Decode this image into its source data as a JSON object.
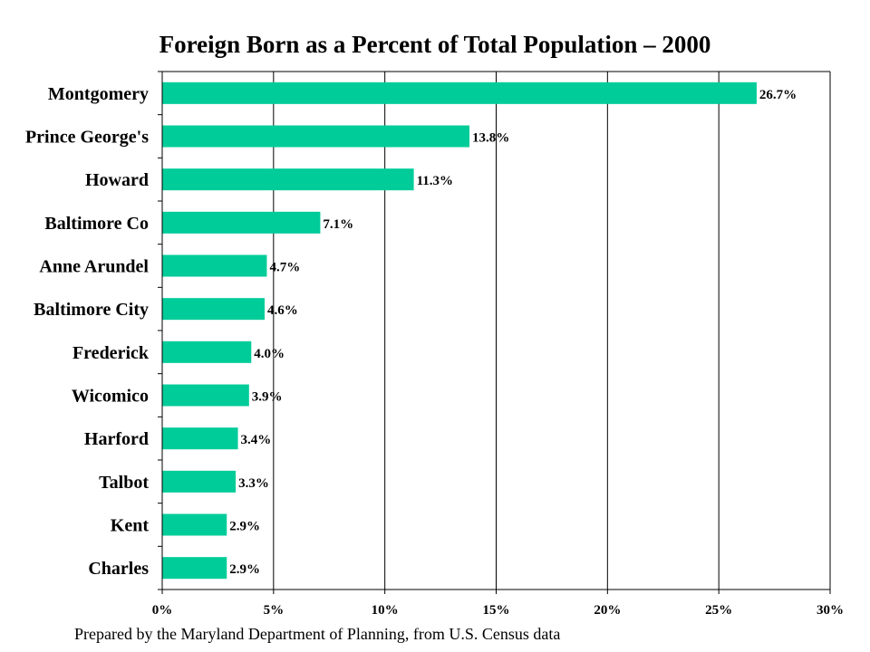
{
  "chart_data": {
    "type": "bar",
    "orientation": "horizontal",
    "title": "Foreign Born as a Percent of Total Population – 2000",
    "categories": [
      "Montgomery",
      "Prince George's",
      "Howard",
      "Baltimore Co",
      "Anne Arundel",
      "Baltimore City",
      "Frederick",
      "Wicomico",
      "Harford",
      "Talbot",
      "Kent",
      "Charles"
    ],
    "values": [
      26.7,
      13.8,
      11.3,
      7.1,
      4.7,
      4.6,
      4.0,
      3.9,
      3.4,
      3.3,
      2.9,
      2.9
    ],
    "data_labels": [
      "26.7%",
      "13.8%",
      "11.3%",
      "7.1%",
      "4.7%",
      "4.6%",
      "4.0%",
      "3.9%",
      "3.4%",
      "3.3%",
      "2.9%",
      "2.9%"
    ],
    "xlim": [
      0,
      30
    ],
    "x_ticks": [
      0,
      5,
      10,
      15,
      20,
      25,
      30
    ],
    "x_tick_labels": [
      "0%",
      "5%",
      "10%",
      "15%",
      "20%",
      "25%",
      "30%"
    ],
    "xlabel": "",
    "ylabel": "",
    "grid": "vertical",
    "legend": "none",
    "bar_color": "#00CC99"
  },
  "footer": {
    "source": "Prepared by the Maryland Department of Planning, from U.S. Census data"
  }
}
